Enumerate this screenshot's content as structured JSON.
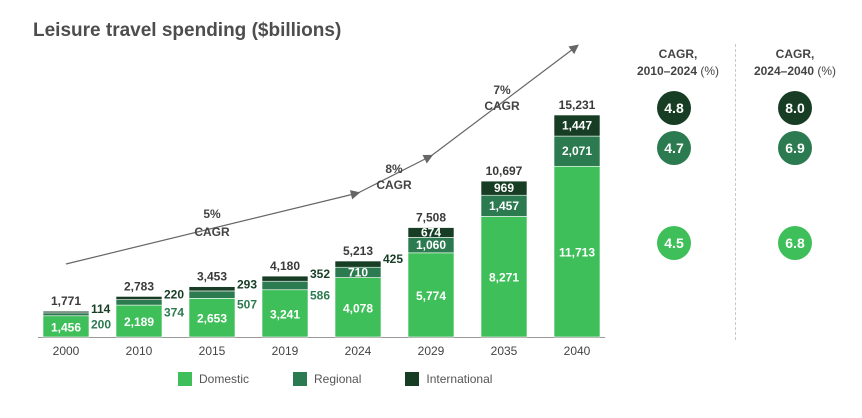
{
  "title": "Leisure travel spending ($billions)",
  "chart_data": {
    "type": "bar",
    "stacked": true,
    "categories": [
      "2000",
      "2010",
      "2015",
      "2019",
      "2024",
      "2029",
      "2035",
      "2040"
    ],
    "series": [
      {
        "name": "Domestic",
        "values": [
          1456,
          2189,
          2653,
          3241,
          4078,
          5774,
          8271,
          11713
        ],
        "labels": [
          "1,456",
          "2,189",
          "2,653",
          "3,241",
          "4,078",
          "5,774",
          "8,271",
          "11,713"
        ]
      },
      {
        "name": "Regional",
        "values": [
          200,
          374,
          507,
          586,
          710,
          1060,
          1457,
          2071
        ],
        "labels": [
          "200",
          "374",
          "507",
          "586",
          "710",
          "1,060",
          "1,457",
          "2,071"
        ]
      },
      {
        "name": "International",
        "values": [
          114,
          220,
          293,
          352,
          425,
          674,
          969,
          1447
        ],
        "labels": [
          "114",
          "220",
          "293",
          "352",
          "425",
          "674",
          "969",
          "1,447"
        ]
      }
    ],
    "totals": [
      "1,771",
      "2,783",
      "3,453",
      "4,180",
      "5,213",
      "7,508",
      "10,697",
      "15,231"
    ],
    "colors": {
      "Domestic": "#3fbf5a",
      "Regional": "#2c7a4f",
      "International": "#173d24"
    },
    "trend_annotations": [
      {
        "line1": "5%",
        "line2": "CAGR"
      },
      {
        "line1": "8%",
        "line2": "CAGR"
      },
      {
        "line1": "7%",
        "line2": "CAGR"
      }
    ],
    "legend": {
      "position": "bottom",
      "entries": [
        "Domestic",
        "Regional",
        "International"
      ]
    }
  },
  "cagr_table": {
    "columns": [
      {
        "heading_line1": "CAGR,",
        "heading_line2": "2010–2024",
        "unit": "(%)",
        "values": [
          "4.8",
          "4.7",
          "4.5"
        ]
      },
      {
        "heading_line1": "CAGR,",
        "heading_line2": "2024–2040",
        "unit": "(%)",
        "values": [
          "8.0",
          "6.9",
          "6.8"
        ]
      }
    ],
    "row_colors": [
      "#173d24",
      "#2c7a4f",
      "#3fbf5a"
    ]
  }
}
